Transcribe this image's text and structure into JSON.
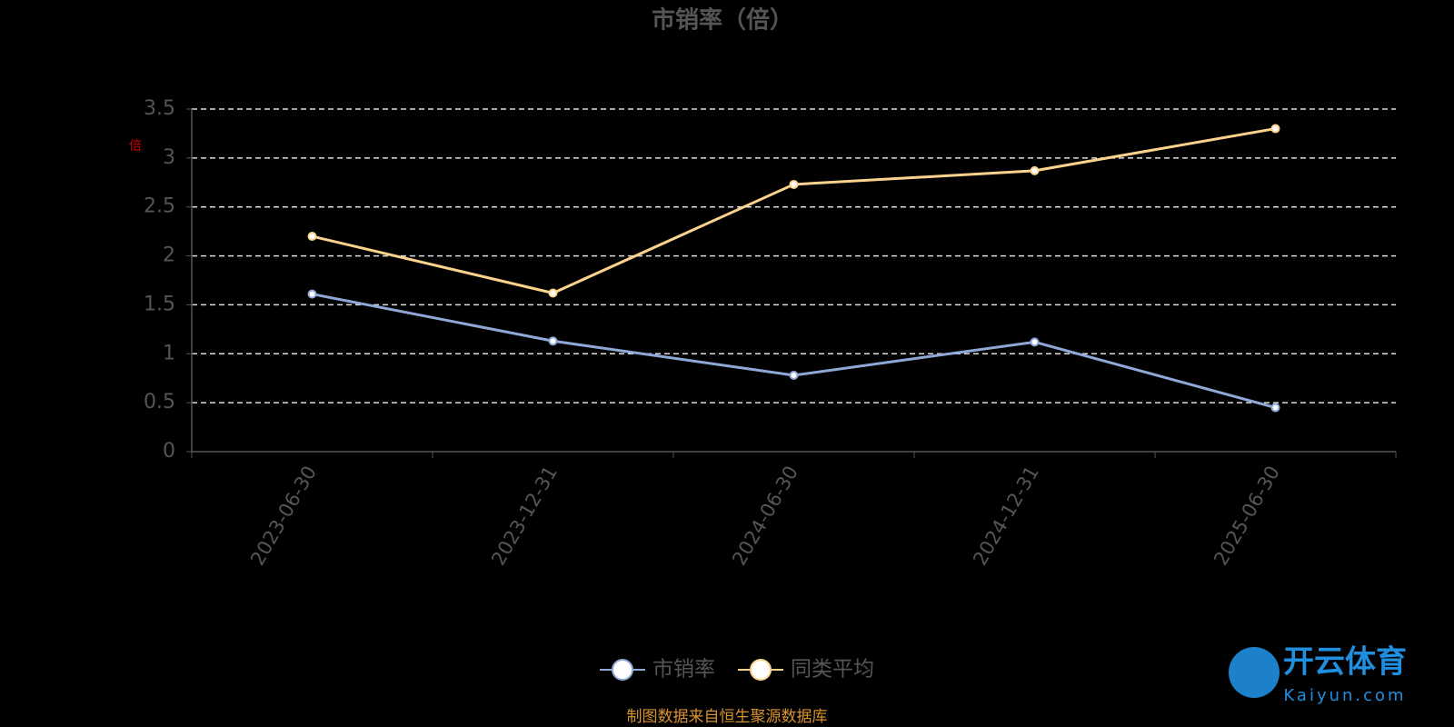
{
  "chart_data": {
    "type": "line",
    "title": "市销率（倍）",
    "y_unit": "倍",
    "categories": [
      "2023-06-30",
      "2023-12-31",
      "2024-06-30",
      "2024-12-31",
      "2025-06-30"
    ],
    "series": [
      {
        "name": "市销率",
        "color": "#8fa8d8",
        "values": [
          1.61,
          1.13,
          0.78,
          1.12,
          0.45
        ]
      },
      {
        "name": "同类平均",
        "color": "#fcd38c",
        "values": [
          2.2,
          1.62,
          2.73,
          2.87,
          3.3
        ]
      }
    ],
    "ylim": [
      0,
      3.5
    ],
    "yticks": [
      0,
      0.5,
      1,
      1.5,
      2,
      2.5,
      3,
      3.5
    ],
    "grid": true,
    "legend": "bottom",
    "source": "制图数据来自恒生聚源数据库",
    "watermark": {
      "brand": "开云体育",
      "site": "Kaiyun.com"
    }
  }
}
